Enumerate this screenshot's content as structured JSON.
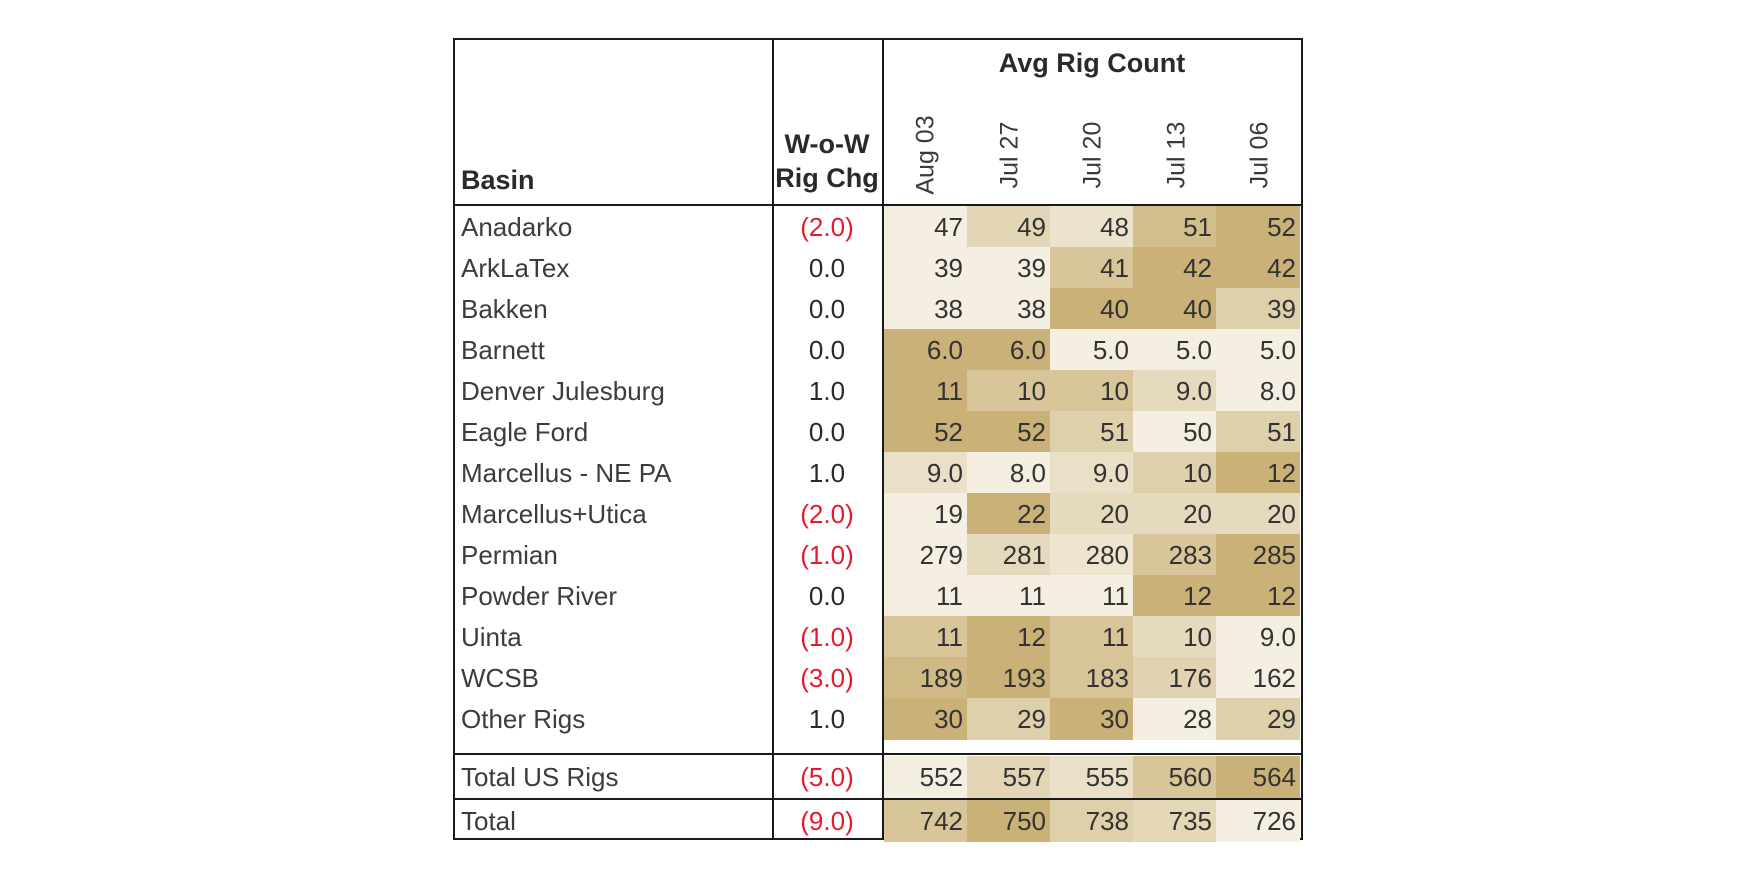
{
  "chart_data": {
    "type": "table",
    "headers": {
      "basin": "Basin",
      "wow_line1": "W-o-W",
      "wow_line2": "Rig Chg",
      "group": "Avg Rig Count",
      "dates": [
        "Aug 03",
        "Jul 27",
        "Jul 20",
        "Jul 13",
        "Jul 06"
      ]
    },
    "rows": [
      {
        "basin": "Anadarko",
        "wow": "(2.0)",
        "negative": true,
        "values": [
          "47",
          "49",
          "48",
          "51",
          "52"
        ]
      },
      {
        "basin": "ArkLaTex",
        "wow": "0.0",
        "negative": false,
        "values": [
          "39",
          "39",
          "41",
          "42",
          "42"
        ]
      },
      {
        "basin": "Bakken",
        "wow": "0.0",
        "negative": false,
        "values": [
          "38",
          "38",
          "40",
          "40",
          "39"
        ]
      },
      {
        "basin": "Barnett",
        "wow": "0.0",
        "negative": false,
        "values": [
          "6.0",
          "6.0",
          "5.0",
          "5.0",
          "5.0"
        ]
      },
      {
        "basin": "Denver Julesburg",
        "wow": "1.0",
        "negative": false,
        "values": [
          "11",
          "10",
          "10",
          "9.0",
          "8.0"
        ]
      },
      {
        "basin": "Eagle Ford",
        "wow": "0.0",
        "negative": false,
        "values": [
          "52",
          "52",
          "51",
          "50",
          "51"
        ]
      },
      {
        "basin": "Marcellus - NE PA",
        "wow": "1.0",
        "negative": false,
        "values": [
          "9.0",
          "8.0",
          "9.0",
          "10",
          "12"
        ]
      },
      {
        "basin": "Marcellus+Utica",
        "wow": "(2.0)",
        "negative": true,
        "values": [
          "19",
          "22",
          "20",
          "20",
          "20"
        ]
      },
      {
        "basin": "Permian",
        "wow": "(1.0)",
        "negative": true,
        "values": [
          "279",
          "281",
          "280",
          "283",
          "285"
        ]
      },
      {
        "basin": "Powder River",
        "wow": "0.0",
        "negative": false,
        "values": [
          "11",
          "11",
          "11",
          "12",
          "12"
        ]
      },
      {
        "basin": "Uinta",
        "wow": "(1.0)",
        "negative": true,
        "values": [
          "11",
          "12",
          "11",
          "10",
          "9.0"
        ]
      },
      {
        "basin": "WCSB",
        "wow": "(3.0)",
        "negative": true,
        "values": [
          "189",
          "193",
          "183",
          "176",
          "162"
        ]
      },
      {
        "basin": "Other Rigs",
        "wow": "1.0",
        "negative": false,
        "values": [
          "30",
          "29",
          "30",
          "28",
          "29"
        ]
      },
      {
        "basin": "Total US Rigs",
        "wow": "(5.0)",
        "negative": true,
        "values": [
          "552",
          "557",
          "555",
          "560",
          "564"
        ]
      },
      {
        "basin": "Total",
        "wow": "(9.0)",
        "negative": true,
        "values": [
          "742",
          "750",
          "738",
          "735",
          "726"
        ]
      }
    ]
  },
  "colors": {
    "heat_low": "#f5efe1",
    "heat_high": "#c9b177",
    "negative_text": "#e8192c",
    "border": "#1a1a1a"
  }
}
